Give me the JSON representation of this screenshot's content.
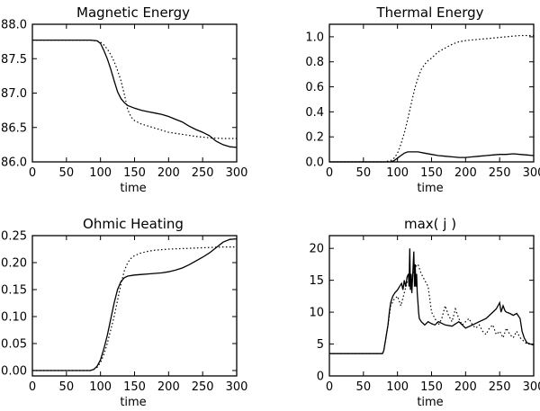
{
  "chart_data": [
    {
      "type": "line",
      "title": "Magnetic Energy",
      "xlabel": "time",
      "ylabel": "",
      "xlim": [
        0,
        300
      ],
      "ylim": [
        86.0,
        88.0
      ],
      "xticks": [
        0,
        50,
        100,
        150,
        200,
        250,
        300
      ],
      "yticks": [
        "86.0",
        "86.5",
        "87.0",
        "87.5",
        "88.0"
      ],
      "series": [
        {
          "name": "solid",
          "style": "solid",
          "x": [
            0,
            85,
            95,
            100,
            105,
            110,
            115,
            120,
            125,
            130,
            135,
            140,
            150,
            160,
            170,
            180,
            190,
            200,
            210,
            220,
            230,
            240,
            250,
            260,
            270,
            280,
            290,
            300
          ],
          "y": [
            87.77,
            87.77,
            87.76,
            87.72,
            87.62,
            87.5,
            87.35,
            87.18,
            87.02,
            86.92,
            86.86,
            86.82,
            86.78,
            86.75,
            86.73,
            86.71,
            86.69,
            86.66,
            86.62,
            86.58,
            86.52,
            86.47,
            86.43,
            86.38,
            86.3,
            86.25,
            86.22,
            86.21
          ]
        },
        {
          "name": "dotted",
          "style": "dotted",
          "x": [
            0,
            85,
            95,
            100,
            105,
            110,
            115,
            120,
            125,
            130,
            135,
            140,
            145,
            150,
            160,
            170,
            180,
            190,
            200,
            220,
            240,
            260,
            280,
            300
          ],
          "y": [
            87.77,
            87.77,
            87.76,
            87.74,
            87.7,
            87.64,
            87.56,
            87.46,
            87.33,
            87.18,
            86.98,
            86.76,
            86.65,
            86.6,
            86.55,
            86.52,
            86.49,
            86.46,
            86.43,
            86.4,
            86.37,
            86.35,
            86.34,
            86.34
          ]
        }
      ]
    },
    {
      "type": "line",
      "title": "Thermal Energy",
      "xlabel": "time",
      "ylabel": "",
      "xlim": [
        0,
        300
      ],
      "ylim": [
        0.0,
        1.1
      ],
      "xticks": [
        0,
        50,
        100,
        150,
        200,
        250,
        300
      ],
      "yticks": [
        "0.0",
        "0.2",
        "0.4",
        "0.6",
        "0.8",
        "1.0"
      ],
      "series": [
        {
          "name": "dotted",
          "style": "dotted",
          "x": [
            0,
            80,
            90,
            95,
            100,
            105,
            110,
            115,
            120,
            125,
            130,
            135,
            140,
            145,
            150,
            160,
            170,
            180,
            190,
            200,
            220,
            240,
            260,
            280,
            300
          ],
          "y": [
            0.0,
            0.0,
            0.01,
            0.03,
            0.07,
            0.14,
            0.23,
            0.34,
            0.46,
            0.58,
            0.67,
            0.74,
            0.78,
            0.81,
            0.83,
            0.88,
            0.91,
            0.94,
            0.96,
            0.97,
            0.98,
            0.99,
            1.0,
            1.01,
            1.01
          ]
        },
        {
          "name": "solid",
          "style": "solid",
          "x": [
            0,
            80,
            90,
            95,
            100,
            105,
            110,
            115,
            120,
            130,
            140,
            150,
            160,
            170,
            180,
            190,
            200,
            210,
            220,
            230,
            240,
            250,
            260,
            270,
            280,
            290,
            300
          ],
          "y": [
            0.0,
            0.0,
            0.0,
            0.01,
            0.03,
            0.05,
            0.07,
            0.08,
            0.08,
            0.08,
            0.07,
            0.06,
            0.05,
            0.045,
            0.04,
            0.035,
            0.035,
            0.04,
            0.045,
            0.05,
            0.055,
            0.06,
            0.06,
            0.065,
            0.06,
            0.055,
            0.05
          ]
        }
      ]
    },
    {
      "type": "line",
      "title": "Ohmic Heating",
      "xlabel": "time",
      "ylabel": "",
      "xlim": [
        0,
        300
      ],
      "ylim": [
        -0.01,
        0.25
      ],
      "xticks": [
        0,
        50,
        100,
        150,
        200,
        250,
        300
      ],
      "yticks": [
        "0.00",
        "0.05",
        "0.10",
        "0.15",
        "0.20",
        "0.25"
      ],
      "series": [
        {
          "name": "solid",
          "style": "solid",
          "x": [
            0,
            85,
            90,
            95,
            100,
            105,
            110,
            115,
            120,
            125,
            130,
            135,
            140,
            150,
            160,
            170,
            180,
            190,
            200,
            210,
            220,
            230,
            240,
            250,
            260,
            270,
            280,
            290,
            300
          ],
          "y": [
            0.0,
            0.0,
            0.002,
            0.008,
            0.02,
            0.04,
            0.065,
            0.095,
            0.125,
            0.15,
            0.165,
            0.172,
            0.175,
            0.177,
            0.178,
            0.179,
            0.18,
            0.181,
            0.183,
            0.186,
            0.19,
            0.196,
            0.203,
            0.21,
            0.218,
            0.228,
            0.238,
            0.243,
            0.244
          ]
        },
        {
          "name": "dotted",
          "style": "dotted",
          "x": [
            0,
            85,
            90,
            95,
            100,
            105,
            110,
            115,
            120,
            125,
            130,
            135,
            140,
            145,
            150,
            160,
            170,
            180,
            200,
            220,
            240,
            260,
            280,
            300
          ],
          "y": [
            0.0,
            0.0,
            0.002,
            0.006,
            0.015,
            0.03,
            0.05,
            0.075,
            0.1,
            0.13,
            0.16,
            0.185,
            0.2,
            0.208,
            0.213,
            0.218,
            0.221,
            0.223,
            0.225,
            0.226,
            0.227,
            0.228,
            0.229,
            0.229
          ]
        }
      ]
    },
    {
      "type": "line",
      "title": "max( j )",
      "xlabel": "time",
      "ylabel": "",
      "xlim": [
        0,
        300
      ],
      "ylim": [
        0,
        22
      ],
      "xticks": [
        0,
        50,
        100,
        150,
        200,
        250,
        300
      ],
      "yticks": [
        "0",
        "5",
        "10",
        "15",
        "20"
      ],
      "series": [
        {
          "name": "solid",
          "style": "solid",
          "x": [
            0,
            78,
            80,
            83,
            86,
            88,
            90,
            93,
            96,
            100,
            103,
            106,
            108,
            110,
            112,
            114,
            116,
            117,
            118,
            119,
            120,
            121,
            122,
            124,
            125,
            126,
            127,
            128,
            129,
            130,
            131,
            132,
            135,
            140,
            145,
            150,
            155,
            160,
            170,
            180,
            190,
            200,
            210,
            220,
            230,
            240,
            245,
            250,
            252,
            255,
            258,
            260,
            265,
            270,
            275,
            280,
            283,
            286,
            290,
            295,
            300
          ],
          "y": [
            3.5,
            3.5,
            4.0,
            6.0,
            8.0,
            10.0,
            11.5,
            12.5,
            13.0,
            13.5,
            14.0,
            14.5,
            13.5,
            15.0,
            14.0,
            15.5,
            16.0,
            14.0,
            20.0,
            13.5,
            16.0,
            13.0,
            15.0,
            19.5,
            14.0,
            17.5,
            14.0,
            16.0,
            13.0,
            11.5,
            10.0,
            9.0,
            8.5,
            8.0,
            8.5,
            8.2,
            8.0,
            8.5,
            8.0,
            7.8,
            8.5,
            7.5,
            8.0,
            8.5,
            9.0,
            10.0,
            10.5,
            11.5,
            10.0,
            11.0,
            10.2,
            10.0,
            9.8,
            9.5,
            9.8,
            9.0,
            7.0,
            6.0,
            5.2,
            5.0,
            4.9
          ]
        },
        {
          "name": "dotted",
          "style": "dotted",
          "x": [
            0,
            78,
            80,
            83,
            86,
            88,
            90,
            95,
            100,
            105,
            110,
            115,
            120,
            125,
            130,
            135,
            140,
            145,
            150,
            155,
            160,
            165,
            170,
            175,
            180,
            185,
            190,
            195,
            200,
            205,
            210,
            215,
            220,
            225,
            230,
            235,
            240,
            245,
            250,
            255,
            260,
            265,
            270,
            275,
            280,
            285,
            290,
            295,
            300
          ],
          "y": [
            3.5,
            3.5,
            4.0,
            6.0,
            8.0,
            9.5,
            11.0,
            12.0,
            12.5,
            11.0,
            13.0,
            15.0,
            14.5,
            17.0,
            17.5,
            16.0,
            15.0,
            14.0,
            10.0,
            9.0,
            8.0,
            9.0,
            11.0,
            9.5,
            8.5,
            10.5,
            9.0,
            8.0,
            8.5,
            9.0,
            8.0,
            7.5,
            8.0,
            7.0,
            6.5,
            7.5,
            8.0,
            6.5,
            7.0,
            6.0,
            7.5,
            6.5,
            6.0,
            7.0,
            6.0,
            5.5,
            5.0,
            5.0,
            4.8
          ]
        }
      ]
    }
  ]
}
